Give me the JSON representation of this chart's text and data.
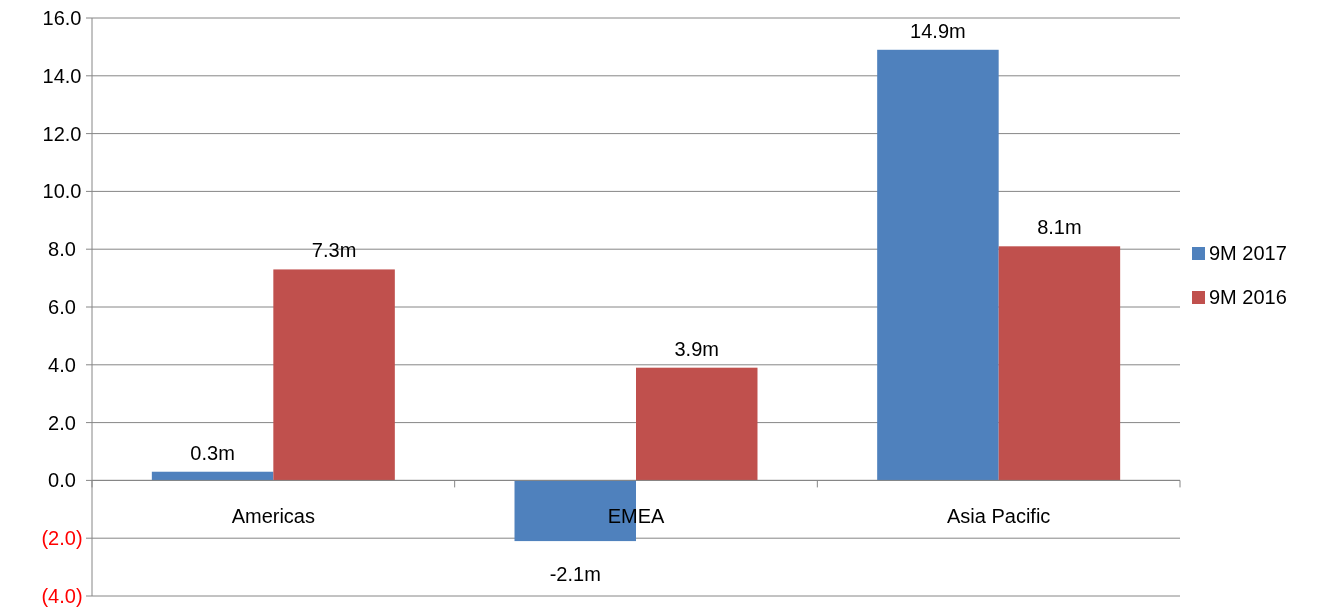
{
  "chart_data": {
    "type": "bar",
    "categories": [
      "Americas",
      "EMEA",
      "Asia Pacific"
    ],
    "series": [
      {
        "name": "9M 2017",
        "color": "#4f81bd",
        "values": [
          0.3,
          -2.1,
          14.9
        ],
        "value_labels": [
          "0.3m",
          "-2.1m",
          "14.9m"
        ]
      },
      {
        "name": "9M 2016",
        "color": "#c0504d",
        "values": [
          7.3,
          3.9,
          8.1
        ],
        "value_labels": [
          "7.3m",
          "3.9m",
          "8.1m"
        ]
      }
    ],
    "ylim": [
      -4,
      16
    ],
    "yticks": [
      {
        "value": -4,
        "label": "(4.0)"
      },
      {
        "value": -2,
        "label": "(2.0)"
      },
      {
        "value": 0,
        "label": "0.0"
      },
      {
        "value": 2,
        "label": "2.0"
      },
      {
        "value": 4,
        "label": "4.0"
      },
      {
        "value": 6,
        "label": "6.0"
      },
      {
        "value": 8,
        "label": "8.0"
      },
      {
        "value": 10,
        "label": "10.0"
      },
      {
        "value": 12,
        "label": "12.0"
      },
      {
        "value": 14,
        "label": "14.0"
      },
      {
        "value": 16,
        "label": "16.0"
      }
    ],
    "grid": "y",
    "legend": "right"
  }
}
